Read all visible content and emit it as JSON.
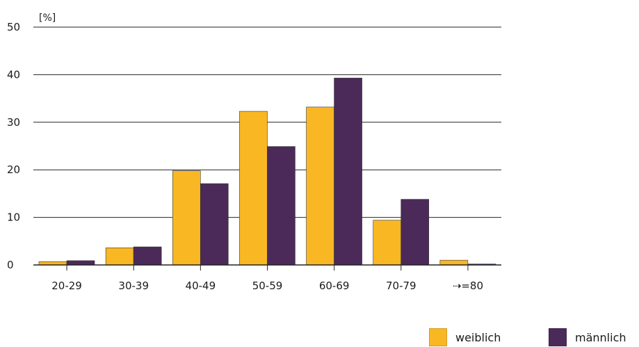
{
  "chart_data": {
    "type": "bar",
    "title": "",
    "xlabel": "",
    "ylabel": "[%]",
    "ylim": [
      0,
      50
    ],
    "yticks": [
      "0",
      "10",
      "20",
      "30",
      "40",
      "50"
    ],
    "categories": [
      "20-29",
      "30-39",
      "40-49",
      "50-59",
      "60-69",
      "70-79",
      "⇢=80"
    ],
    "series": [
      {
        "name": "weiblich",
        "color": "#f9b724",
        "values": [
          0.7,
          3.6,
          19.8,
          32.3,
          33.2,
          9.4,
          1.0
        ]
      },
      {
        "name": "männlich",
        "color": "#4b2a5a",
        "values": [
          0.9,
          3.8,
          17.1,
          24.9,
          39.3,
          13.8,
          0.2
        ]
      }
    ],
    "grid": true,
    "legend_position": "bottom-right"
  }
}
